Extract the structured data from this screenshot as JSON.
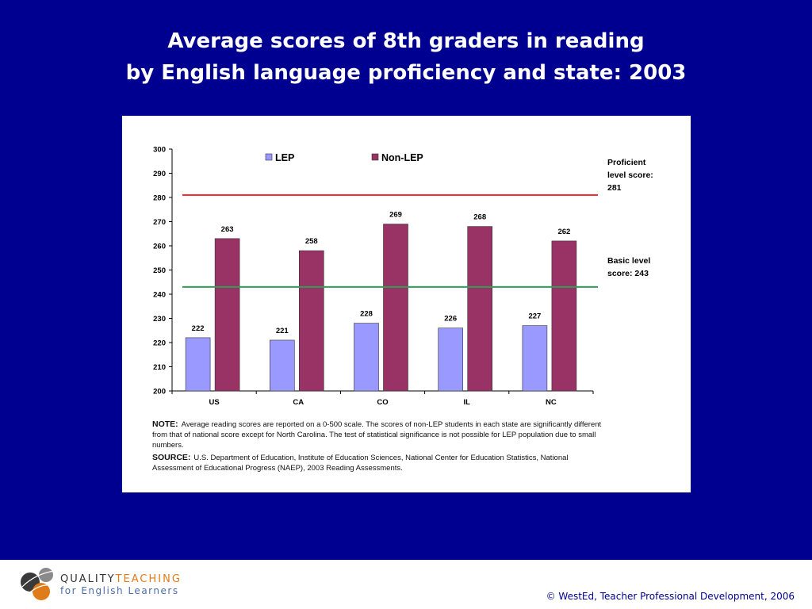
{
  "slide": {
    "title_line1": "Average scores of 8th graders in reading",
    "title_line2": "by English language proficiency and state: 2003",
    "background_color": "#000090"
  },
  "chart_data": {
    "type": "bar",
    "categories": [
      "US",
      "CA",
      "CO",
      "IL",
      "NC"
    ],
    "series": [
      {
        "name": "LEP",
        "values": [
          222,
          221,
          228,
          226,
          227
        ],
        "color": "#9999ff"
      },
      {
        "name": "Non-LEP",
        "values": [
          263,
          258,
          269,
          268,
          262
        ],
        "color": "#993366"
      }
    ],
    "ylim": [
      200,
      300
    ],
    "yticks": [
      200,
      210,
      220,
      230,
      240,
      250,
      260,
      270,
      280,
      290,
      300
    ],
    "legend_position": "top",
    "grid": false,
    "reference_lines": [
      {
        "value": 281,
        "label_lines": [
          "Proficient",
          "level score:",
          "281"
        ],
        "color": "#ff2a2a"
      },
      {
        "value": 243,
        "label_lines": [
          "Basic level",
          "score: 243"
        ],
        "color": "#2e9e52"
      }
    ],
    "note_label": "NOTE:",
    "note_text": "Average reading scores are reported on a 0-500 scale.  The scores of non-LEP students in each state are significantly different from that of national score except for North Carolina. The test of statistical significance is not possible for LEP population due to small numbers.",
    "source_label": "SOURCE:",
    "source_text": "U.S. Department of Education, Institute of Education Sciences, National Center for Education Statistics, National Assessment of Educational Progress (NAEP), 2003 Reading Assessments."
  },
  "footer": {
    "logo_word1": "QUALITY",
    "logo_word2": "TEACHING",
    "logo_line2": "for English Learners",
    "logo_color_dark": "#333333",
    "logo_color_accent": "#e07b1a",
    "logo_color_line2": "#4a6ea9",
    "copyright": "© WestEd, Teacher Professional Development, 2006"
  }
}
